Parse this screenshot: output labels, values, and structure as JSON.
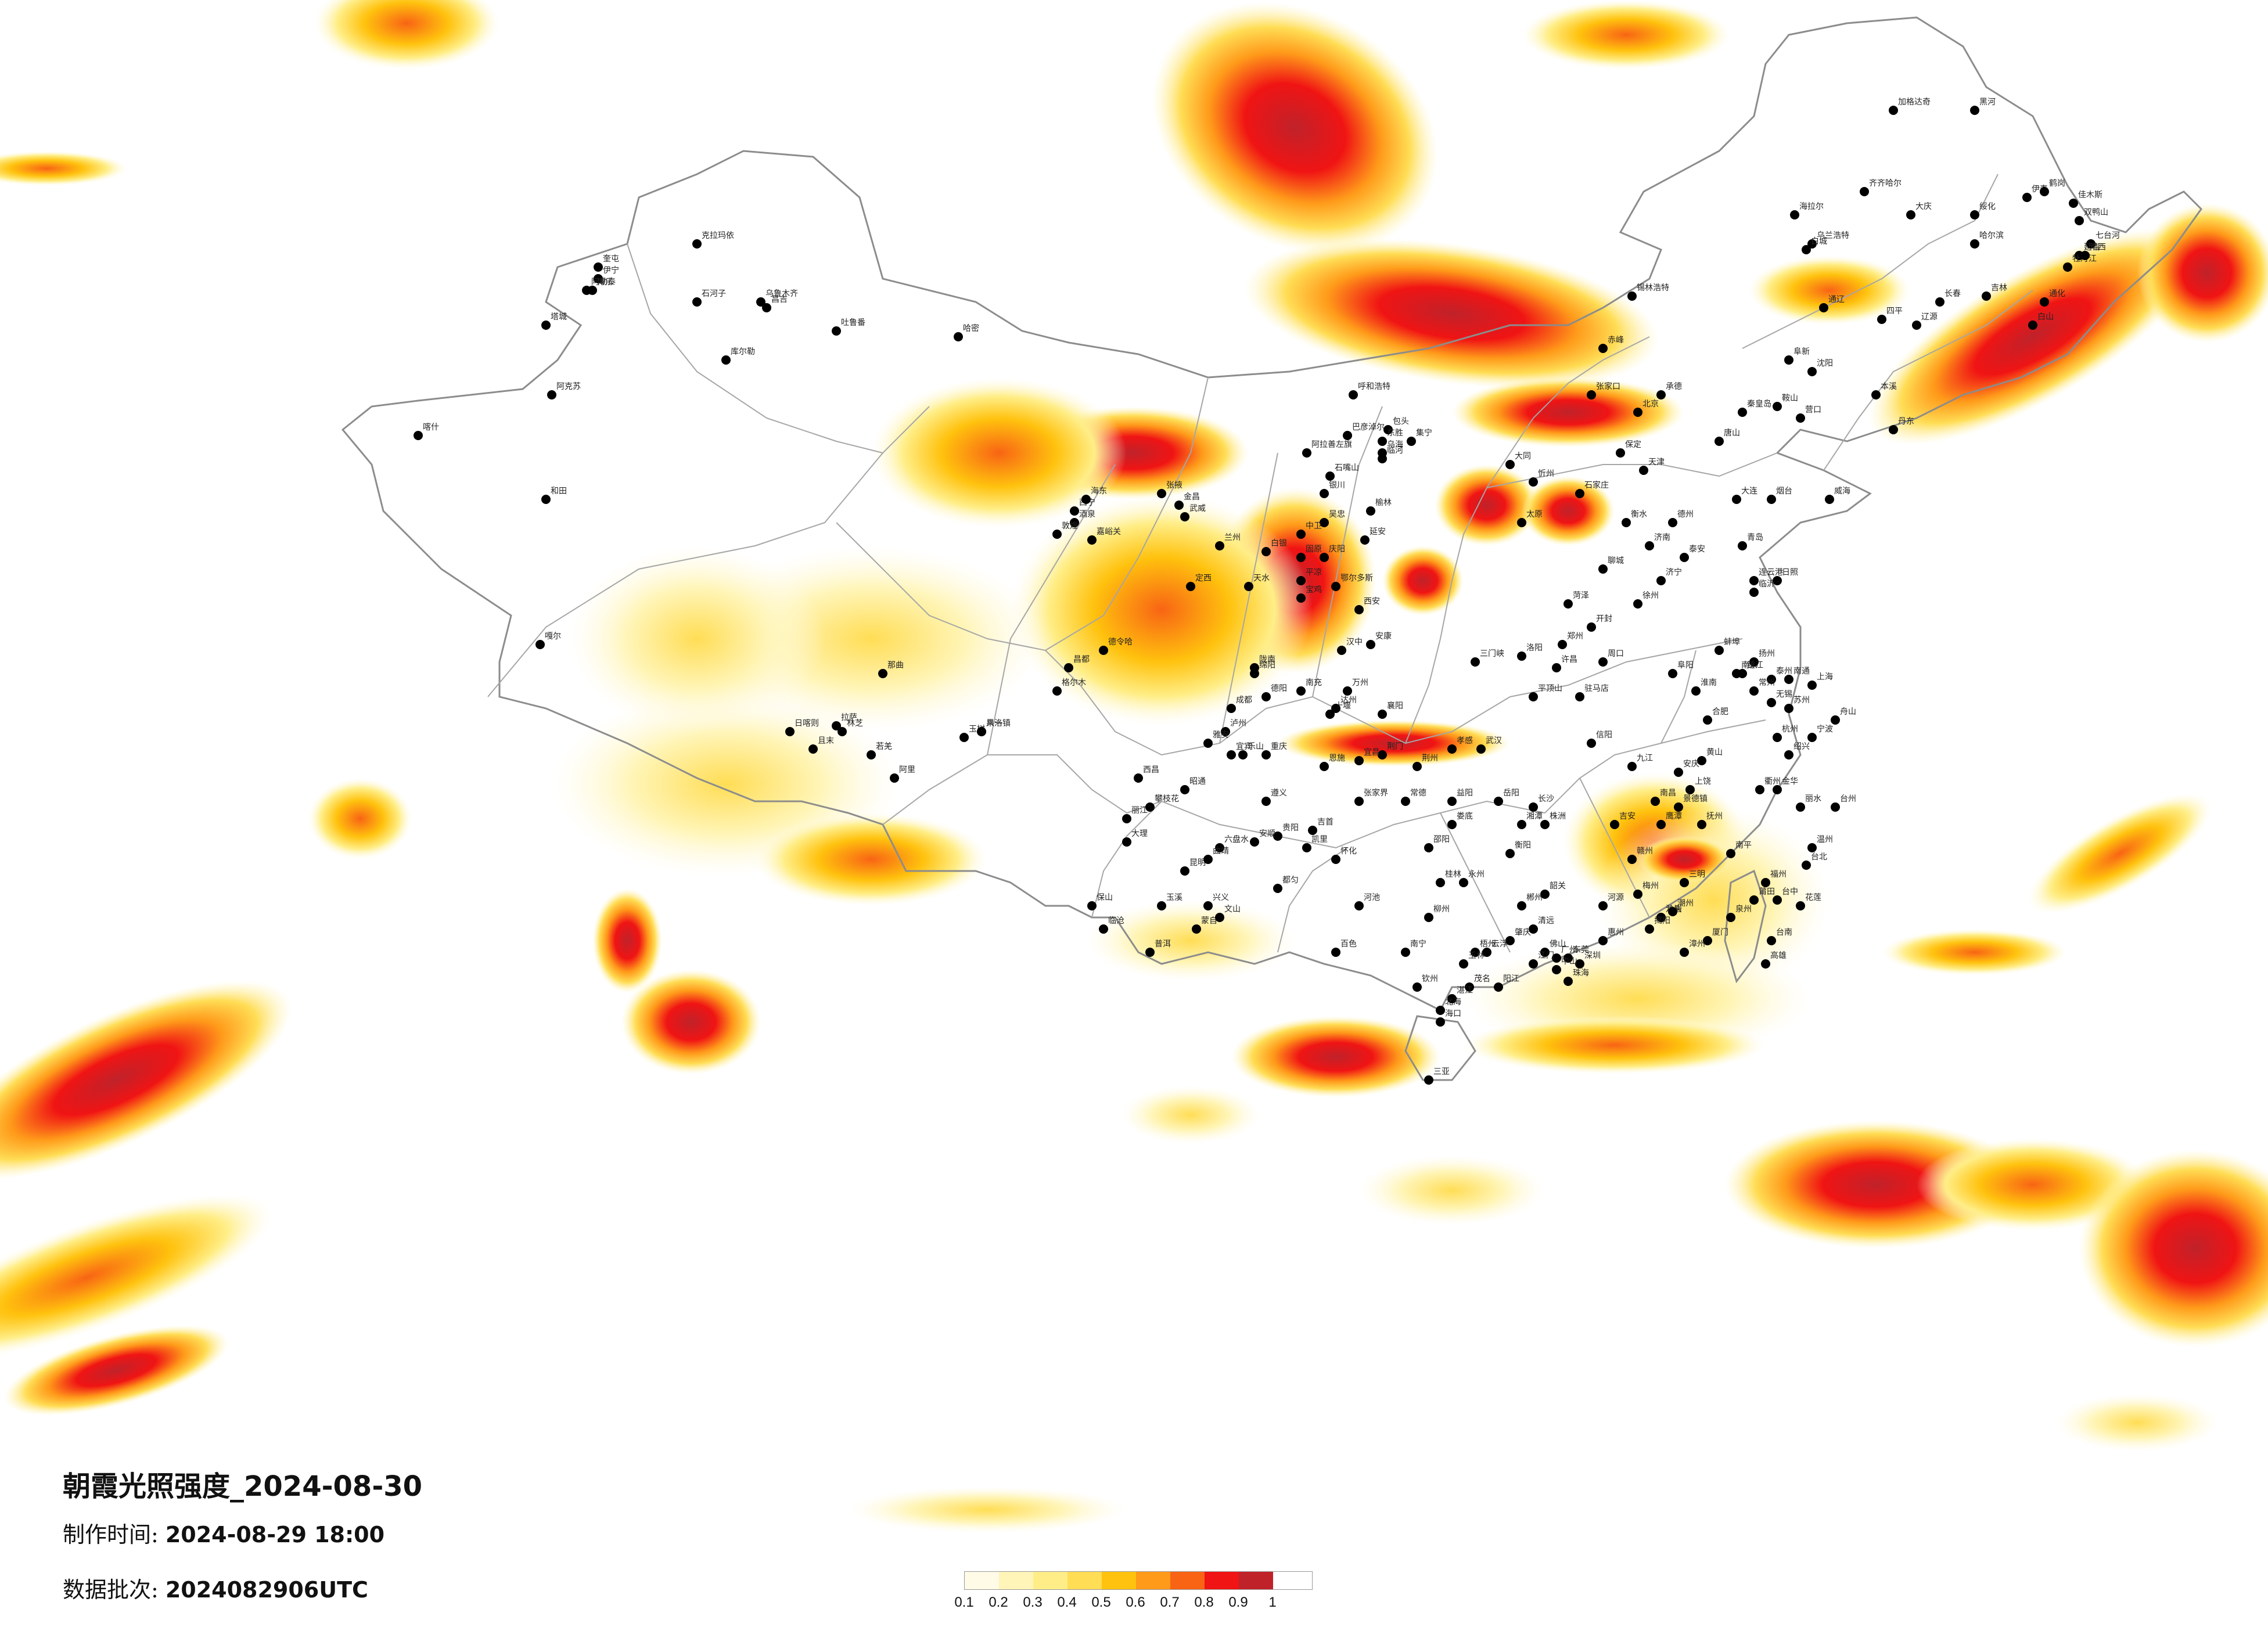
{
  "title": "朝霞光照强度_2024-08-30",
  "made_time": {
    "label": "制作时间:",
    "value": "2024-08-29 18:00"
  },
  "batch": {
    "label": "数据批次:",
    "value": "2024082906UTC"
  },
  "legend": {
    "ticks": [
      "0.1",
      "0.2",
      "0.3",
      "0.4",
      "0.5",
      "0.6",
      "0.7",
      "0.8",
      "0.9",
      "1"
    ],
    "colors": [
      "#fffbe6",
      "#fff5b8",
      "#ffee88",
      "#ffdd55",
      "#ffc20e",
      "#ff9a1a",
      "#f86414",
      "#f01414",
      "#c0222a"
    ]
  },
  "colors": {
    "background": "#ffffff",
    "border": "#8c8c8c",
    "city_dot": "#000000"
  },
  "cities": [
    "海拉尔",
    "加格达奇",
    "黑河",
    "齐齐哈尔",
    "大庆",
    "哈尔滨",
    "绥化",
    "伊春",
    "鹤岗",
    "佳木斯",
    "双鸭山",
    "七台河",
    "乌兰浩特",
    "白城",
    "长春",
    "吉林",
    "通辽",
    "四平",
    "辽源",
    "锡林浩特",
    "赤峰",
    "阜新",
    "沈阳",
    "本溪",
    "丹东",
    "鞍山",
    "营口",
    "张家口",
    "北京",
    "承德",
    "天津",
    "唐山",
    "秦皇岛",
    "大连",
    "呼和浩特",
    "包头",
    "集宁",
    "大同",
    "忻州",
    "太原",
    "石家庄",
    "保定",
    "衡水",
    "德州",
    "济南",
    "烟台",
    "威海",
    "青岛",
    "日照",
    "临沂",
    "连云港",
    "徐州",
    "菏泽",
    "聊城",
    "泰安",
    "济宁",
    "开封",
    "郑州",
    "洛阳",
    "三门峡",
    "平顶山",
    "许昌",
    "周口",
    "驻马店",
    "信阳",
    "阜阳",
    "蚌埠",
    "淮南",
    "合肥",
    "南京",
    "扬州",
    "泰州",
    "南通",
    "上海",
    "苏州",
    "无锡",
    "常州",
    "镇江",
    "杭州",
    "宁波",
    "舟山",
    "绍兴",
    "金华",
    "温州",
    "台州",
    "丽水",
    "衢州",
    "黄山",
    "安庆",
    "九江",
    "南昌",
    "景德镇",
    "上饶",
    "鹰潭",
    "抚州",
    "吉安",
    "赣州",
    "福州",
    "莆田",
    "泉州",
    "厦门",
    "漳州",
    "龙岩",
    "三明",
    "南平",
    "台北",
    "台中",
    "台南",
    "高雄",
    "花莲",
    "武汉",
    "孝感",
    "荆州",
    "荆门",
    "宜昌",
    "襄阳",
    "十堰",
    "恩施",
    "岳阳",
    "长沙",
    "株洲",
    "湘潭",
    "衡阳",
    "郴州",
    "永州",
    "邵阳",
    "娄底",
    "益阳",
    "常德",
    "张家界",
    "怀化",
    "吉首",
    "广州",
    "深圳",
    "东莞",
    "佛山",
    "中山",
    "珠海",
    "江门",
    "惠州",
    "汕头",
    "潮州",
    "揭阳",
    "梅州",
    "河源",
    "韶关",
    "清远",
    "肇庆",
    "云浮",
    "阳江",
    "茂名",
    "湛江",
    "海口",
    "三亚",
    "南宁",
    "柳州",
    "桂林",
    "梧州",
    "玉林",
    "钦州",
    "北海",
    "百色",
    "河池",
    "贵阳",
    "遵义",
    "安顺",
    "六盘水",
    "凯里",
    "都匀",
    "兴义",
    "昆明",
    "曲靖",
    "玉溪",
    "大理",
    "丽江",
    "保山",
    "临沧",
    "普洱",
    "蒙自",
    "文山",
    "昭通",
    "成都",
    "绵阳",
    "德阳",
    "南充",
    "达州",
    "宜宾",
    "泸州",
    "乐山",
    "雅安",
    "西昌",
    "攀枝花",
    "重庆",
    "万州",
    "西安",
    "宝鸡",
    "汉中",
    "安康",
    "延安",
    "榆林",
    "银川",
    "石嘴山",
    "吴忠",
    "中卫",
    "固原",
    "兰州",
    "白银",
    "天水",
    "平凉",
    "庆阳",
    "定西",
    "陇南",
    "武威",
    "金昌",
    "张掖",
    "酒泉",
    "嘉峪关",
    "敦煌",
    "西宁",
    "海东",
    "格尔木",
    "德令哈",
    "玉树",
    "果洛",
    "拉萨",
    "日喀则",
    "林芝",
    "八一镇",
    "昌都",
    "那曲",
    "阿里",
    "乌鲁木齐",
    "昌吉",
    "石河子",
    "克拉玛依",
    "奎屯",
    "伊宁",
    "博乐",
    "塔城",
    "阿勒泰",
    "哈密",
    "吐鲁番",
    "库尔勒",
    "阿克苏",
    "喀什",
    "和田",
    "且末",
    "若羌",
    "嘎尔",
    "阿拉善左旗",
    "鄂尔多斯",
    "巴彦淖尔",
    "乌海",
    "临河",
    "东胜",
    "延吉",
    "通化",
    "白山",
    "牡丹江",
    "鸡西"
  ]
}
